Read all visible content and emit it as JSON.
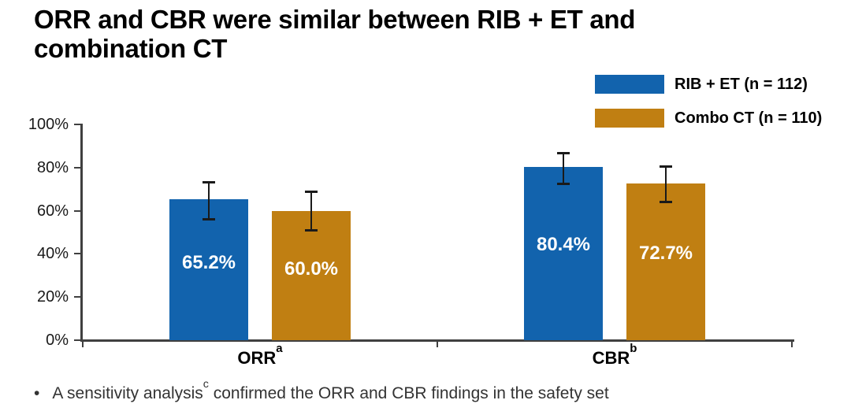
{
  "title": {
    "lines": [
      "ORR and CBR were similar between RIB + ET and",
      "combination CT"
    ]
  },
  "footnote": {
    "bullet": "•",
    "pre_sup": "A sensitivity analysis",
    "sup": "c",
    "post_sup": " confirmed the ORR and CBR findings in the safety set"
  },
  "colors": {
    "rib_blue": "#1263ad",
    "combo_orange": "#c07f12",
    "axis": "#404040",
    "error_bar": "#1a1a1a",
    "bar_value_text": "#ffffff"
  },
  "chart_data": {
    "type": "bar",
    "title": "ORR and CBR were similar between RIB + ET and combination CT",
    "categories": [
      {
        "label": "ORR",
        "sup": "a"
      },
      {
        "label": "CBR",
        "sup": "b"
      }
    ],
    "series": [
      {
        "name": "RIB + ET (n = 112)",
        "color": "#1263ad",
        "values": [
          65.2,
          80.4
        ],
        "value_labels": [
          "65.2%",
          "80.4%"
        ],
        "ci_low": [
          55.6,
          71.8
        ],
        "ci_high": [
          73.9,
          87.3
        ]
      },
      {
        "name": "Combo CT (n = 110)",
        "color": "#c07f12",
        "values": [
          60.0,
          72.7
        ],
        "value_labels": [
          "60.0%",
          "72.7%"
        ],
        "ci_low": [
          50.2,
          63.4
        ],
        "ci_high": [
          69.2,
          81.0
        ]
      }
    ],
    "xlabel": "",
    "ylabel": "",
    "ylim": [
      0,
      100
    ],
    "yticks": [
      {
        "v": 0,
        "label": "0%"
      },
      {
        "v": 20,
        "label": "20%"
      },
      {
        "v": 40,
        "label": "40%"
      },
      {
        "v": 60,
        "label": "60%"
      },
      {
        "v": 80,
        "label": "80%"
      },
      {
        "v": 100,
        "label": "100%"
      }
    ],
    "grid": false,
    "legend_position": "top-right"
  }
}
